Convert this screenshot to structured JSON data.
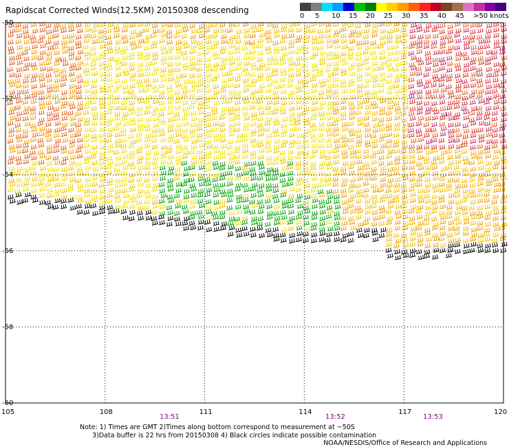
{
  "title": "Rapidscat Corrected Winds(12.5KM) 20150308 descending",
  "legend": {
    "colors": [
      "#404040",
      "#808080",
      "#00e0ff",
      "#00a0ff",
      "#0000d0",
      "#00c000",
      "#008000",
      "#ffff00",
      "#ffd000",
      "#ffa000",
      "#ff6000",
      "#ff2020",
      "#c00020",
      "#804020",
      "#a07050",
      "#e070c0",
      "#c030a0",
      "#8000a0",
      "#400080"
    ],
    "labels": [
      "0",
      "5",
      "10",
      "15",
      "20",
      "25",
      "30",
      "35",
      "40",
      "45",
      ">50 knots"
    ]
  },
  "map": {
    "lat_labels": [
      "-50",
      "-52",
      "-54",
      "-56",
      "-58",
      "-60"
    ],
    "lon_labels": [
      "105",
      "108",
      "111",
      "114",
      "117",
      "120"
    ],
    "time_labels": [
      "13:51",
      "13:52",
      "13:53"
    ]
  },
  "note": "Note: 1) Times are GMT 2)Times along bottom correspond to measurement at ~50S\n      3)Data buffer is 22 hrs from 20150308 4) Black circles indicate possible contamination",
  "credit": "NOAA/NESDIS/Office of Research and Applications"
}
